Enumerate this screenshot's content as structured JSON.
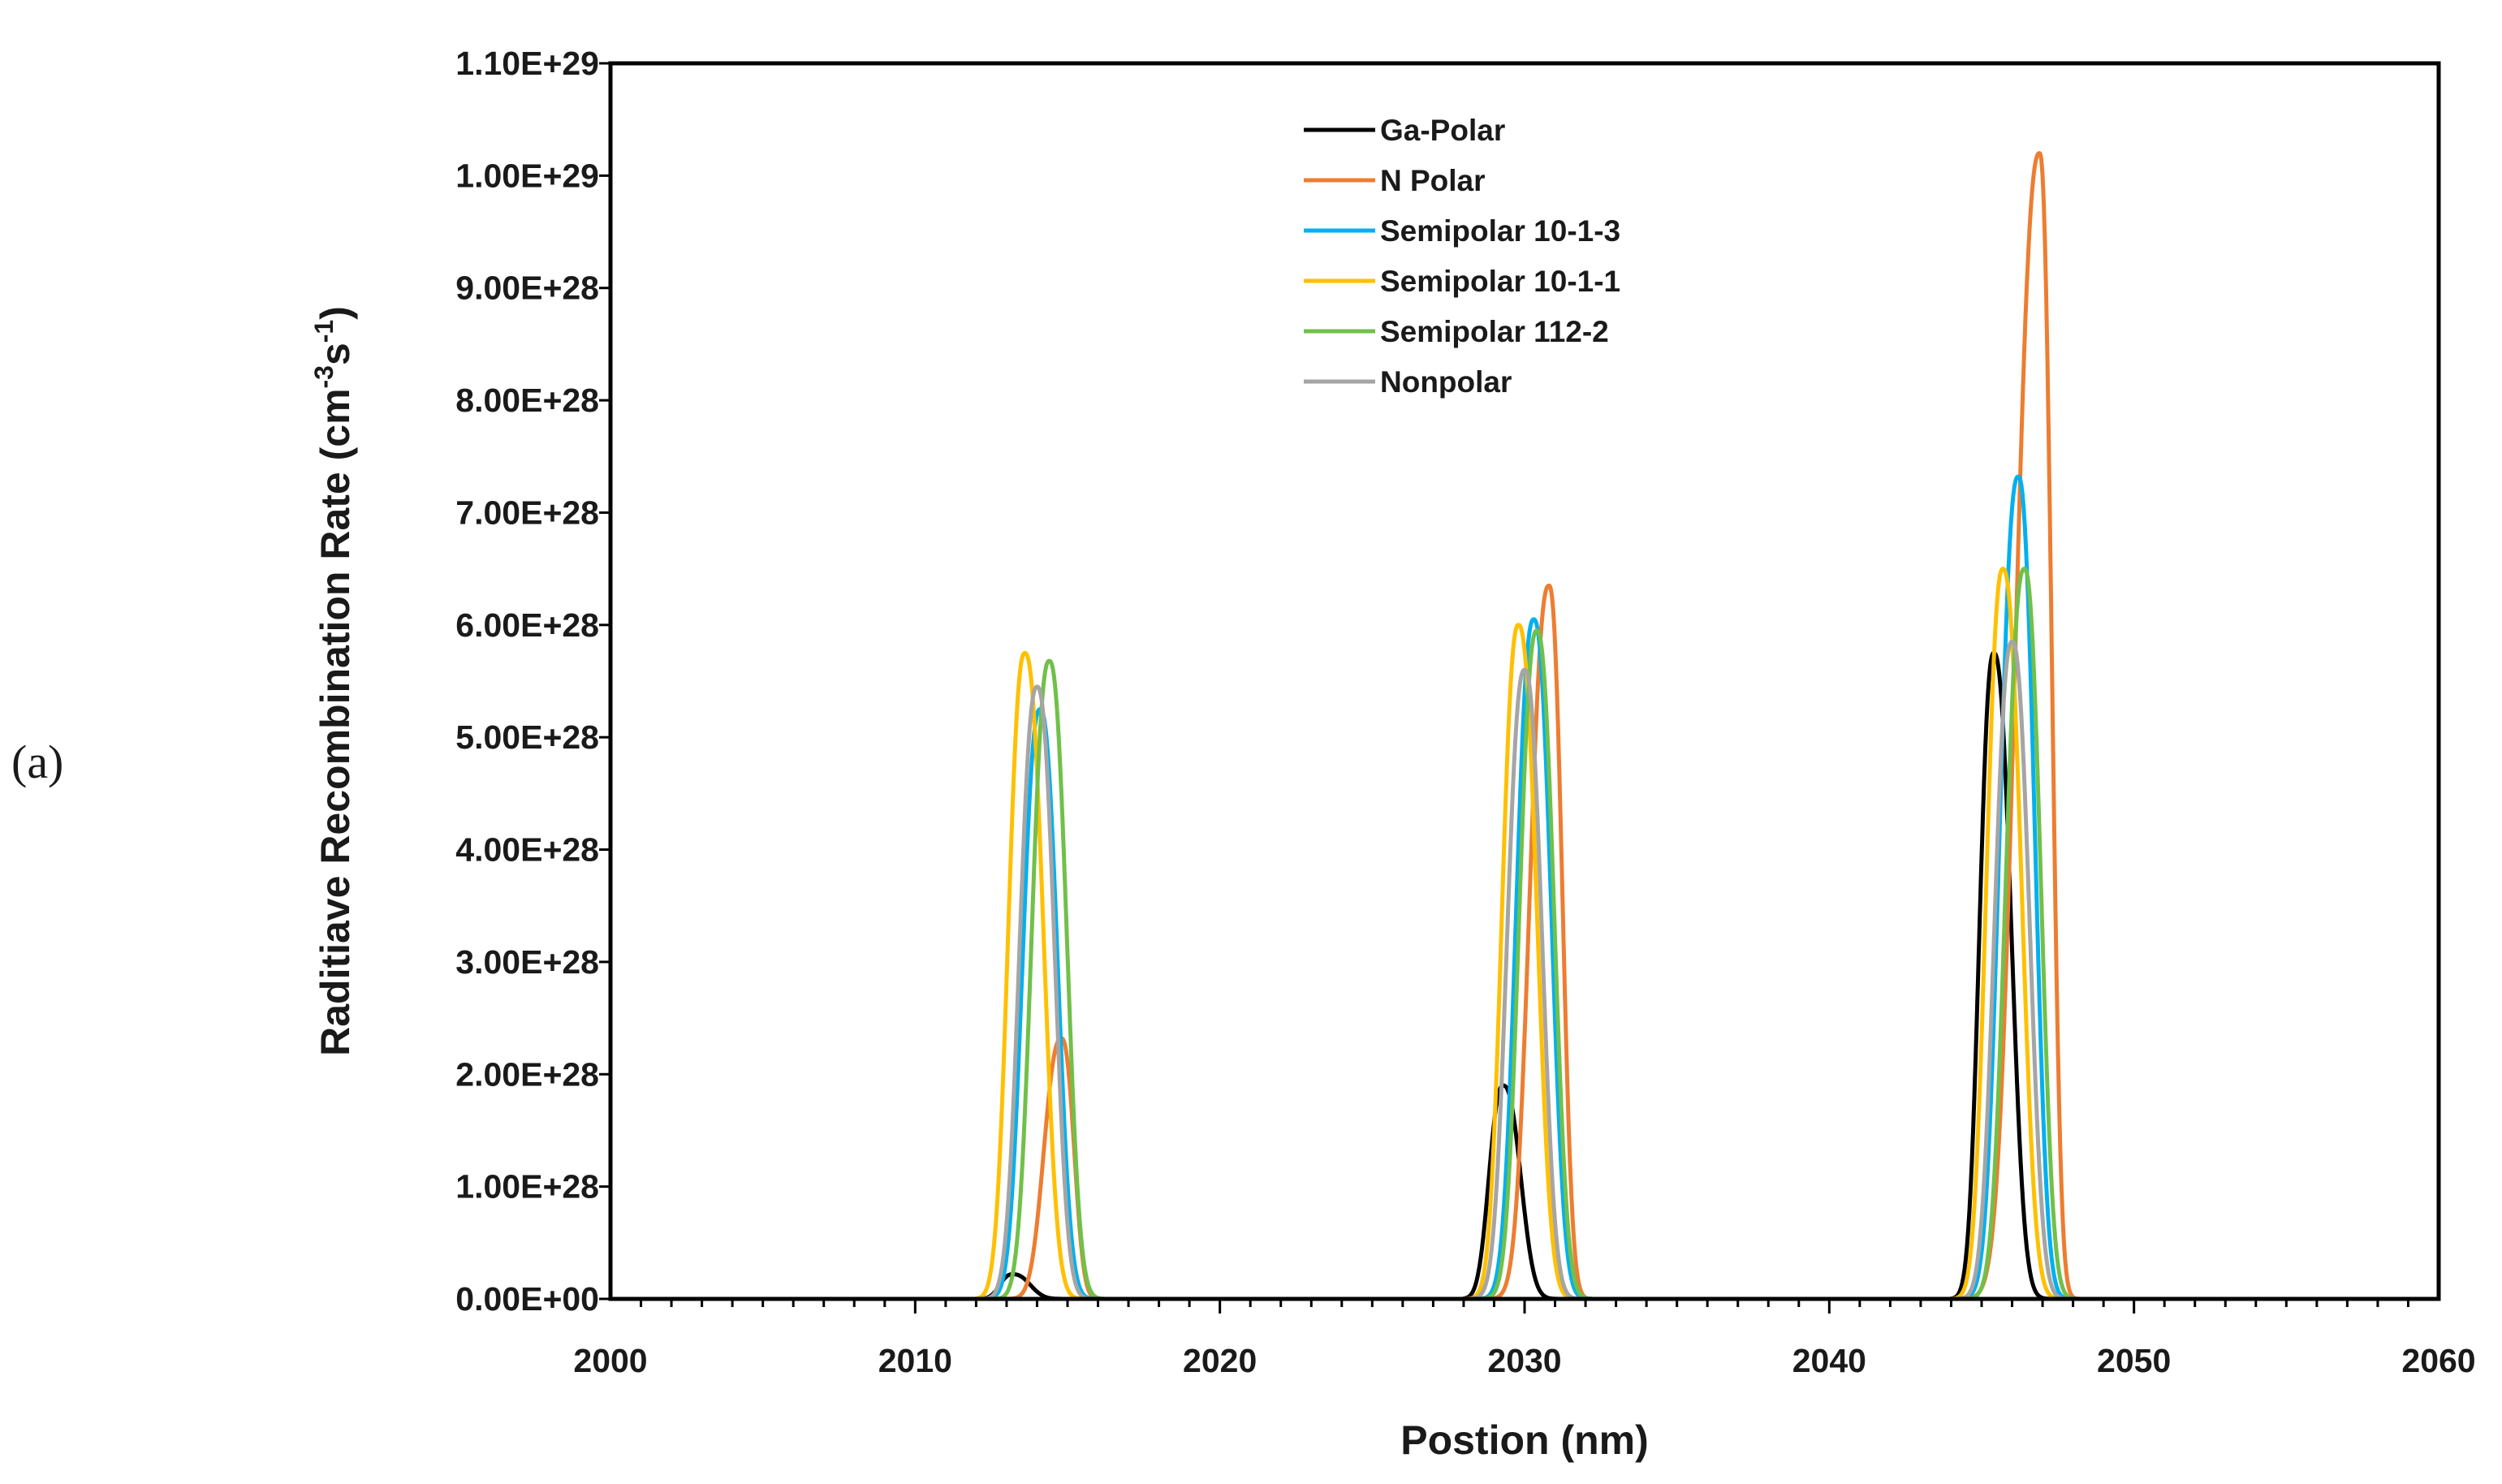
{
  "panel_label": "(a)",
  "chart_data": {
    "type": "line",
    "title": "",
    "xlabel": "Postion (nm)",
    "ylabel": "Raditiave Recombination Rate (cm",
    "ylabel_sup1": "-3",
    "ylabel_mid": "s",
    "ylabel_sup2": "-1",
    "ylabel_end": ")",
    "xlim": [
      2000,
      2060
    ],
    "ylim": [
      0,
      1.1e+29
    ],
    "x_ticks": [
      2000,
      2010,
      2020,
      2030,
      2040,
      2050,
      2060
    ],
    "x_tick_labels": [
      "2000",
      "2010",
      "2020",
      "2030",
      "2040",
      "2050",
      "2060"
    ],
    "y_ticks": [
      0,
      1e+28,
      2e+28,
      3e+28,
      4e+28,
      5e+28,
      6e+28,
      7e+28,
      8e+28,
      9e+28,
      1e+29,
      1.1e+29
    ],
    "y_tick_labels": [
      "0.00E+00",
      "1.00E+28",
      "2.00E+28",
      "3.00E+28",
      "4.00E+28",
      "5.00E+28",
      "6.00E+28",
      "7.00E+28",
      "8.00E+28",
      "9.00E+28",
      "1.00E+29",
      "1.10E+29"
    ],
    "grid": false,
    "legend_position": "top-center",
    "wells": [
      {
        "start": 2012.0,
        "end": 2016.2
      },
      {
        "start": 2028.0,
        "end": 2032.2
      },
      {
        "start": 2044.0,
        "end": 2048.2
      }
    ],
    "series": [
      {
        "name": "Ga-Polar",
        "color": "#000000",
        "peaks": [
          {
            "x": 2013.2,
            "y": 2.2e+27,
            "sl": 0.4,
            "sr": 0.55
          },
          {
            "x": 2029.3,
            "y": 1.9e+28,
            "sl": 0.45,
            "sr": 0.55
          },
          {
            "x": 2045.4,
            "y": 5.75e+28,
            "sl": 0.45,
            "sr": 0.55
          }
        ]
      },
      {
        "name": "N Polar",
        "color": "#ED7D31",
        "peaks": [
          {
            "x": 2014.8,
            "y": 2.32e+28,
            "sl": 0.55,
            "sr": 0.4
          },
          {
            "x": 2030.8,
            "y": 6.35e+28,
            "sl": 0.6,
            "sr": 0.42
          },
          {
            "x": 2046.9,
            "y": 1.02e+29,
            "sl": 0.75,
            "sr": 0.38
          }
        ]
      },
      {
        "name": "Semipolar 10-1-3",
        "color": "#00B0F0",
        "peaks": [
          {
            "x": 2014.1,
            "y": 5.25e+28,
            "sl": 0.55,
            "sr": 0.55
          },
          {
            "x": 2030.3,
            "y": 6.05e+28,
            "sl": 0.55,
            "sr": 0.55
          },
          {
            "x": 2046.2,
            "y": 7.32e+28,
            "sl": 0.58,
            "sr": 0.52
          }
        ]
      },
      {
        "name": "Semipolar 10-1-1",
        "color": "#FFC000",
        "peaks": [
          {
            "x": 2013.6,
            "y": 5.75e+28,
            "sl": 0.52,
            "sr": 0.58
          },
          {
            "x": 2029.8,
            "y": 6e+28,
            "sl": 0.52,
            "sr": 0.58
          },
          {
            "x": 2045.7,
            "y": 6.5e+28,
            "sl": 0.52,
            "sr": 0.58
          }
        ]
      },
      {
        "name": "Semipolar 112-2",
        "color": "#70C04A",
        "peaks": [
          {
            "x": 2014.4,
            "y": 5.68e+28,
            "sl": 0.55,
            "sr": 0.55
          },
          {
            "x": 2030.4,
            "y": 5.95e+28,
            "sl": 0.55,
            "sr": 0.55
          },
          {
            "x": 2046.4,
            "y": 6.5e+28,
            "sl": 0.58,
            "sr": 0.52
          }
        ]
      },
      {
        "name": "Nonpolar",
        "color": "#A5A5A5",
        "peaks": [
          {
            "x": 2014.0,
            "y": 5.45e+28,
            "sl": 0.55,
            "sr": 0.55
          },
          {
            "x": 2030.0,
            "y": 5.6e+28,
            "sl": 0.55,
            "sr": 0.55
          },
          {
            "x": 2046.0,
            "y": 5.85e+28,
            "sl": 0.55,
            "sr": 0.55
          }
        ]
      }
    ]
  }
}
